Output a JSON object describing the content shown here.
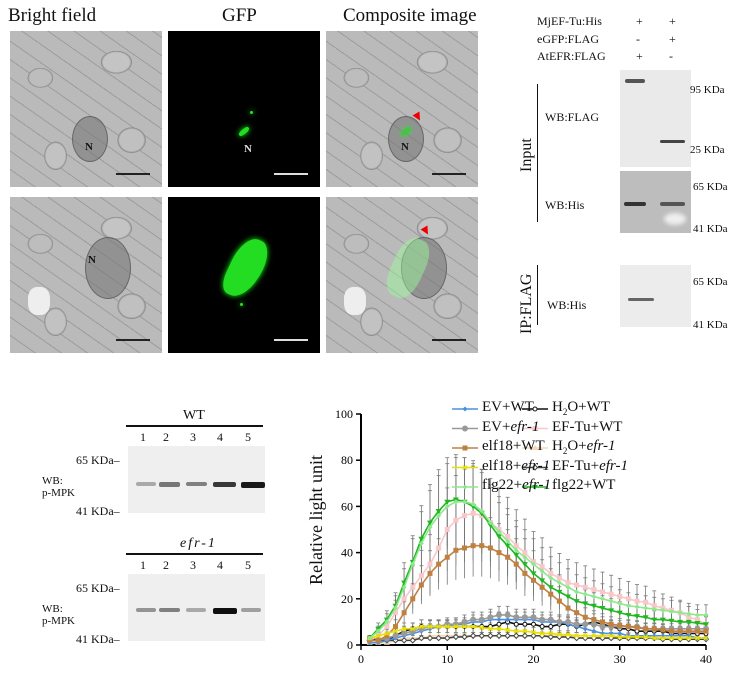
{
  "microscopy": {
    "columns": [
      "Bright field",
      "GFP",
      "Composite image"
    ],
    "nucleus_label": "N"
  },
  "coip_blot": {
    "row_labels": [
      "MjEF-Tu:His",
      "eGFP:FLAG",
      "AtEFR:FLAG"
    ],
    "lane1": [
      "+",
      "-",
      "+"
    ],
    "lane2": [
      "+",
      "+",
      "-"
    ],
    "input_label": "Input",
    "ip_label": "IP:FLAG",
    "wb_flag": "WB:FLAG",
    "wb_his": "WB:His",
    "wb_his_ip": "WB:His",
    "markers_flag": [
      "95 KDa",
      "25 KDa"
    ],
    "markers_his": [
      "65 KDa",
      "41 KDa"
    ],
    "markers_ip": [
      "65 KDa",
      "41 KDa"
    ]
  },
  "mpk_blots": [
    {
      "title": "WT",
      "lanes": [
        "1",
        "2",
        "3",
        "4",
        "5"
      ],
      "wb_line1": "WB:",
      "wb_line2": "p-MPK",
      "marker_top": "65 KDa",
      "marker_bottom": "41 KDa",
      "band_intensity": [
        0.25,
        0.5,
        0.45,
        0.8,
        0.95
      ]
    },
    {
      "title": "efr-1",
      "lanes": [
        "1",
        "2",
        "3",
        "4",
        "5"
      ],
      "wb_line1": "WB:",
      "wb_line2": "p-MPK",
      "marker_top": "65 KDa",
      "marker_bottom": "41 KDa",
      "band_intensity": [
        0.35,
        0.45,
        0.25,
        1.0,
        0.3
      ]
    }
  ],
  "chart_data": {
    "type": "line",
    "title": "",
    "xlabel": "",
    "ylabel": "Relative light unit",
    "xlim": [
      0,
      40
    ],
    "ylim": [
      0,
      100
    ],
    "xticks": [
      0,
      10,
      20,
      30,
      40
    ],
    "yticks": [
      0,
      20,
      40,
      60,
      80,
      100
    ],
    "legend_position": "top-right",
    "x": [
      1,
      2,
      3,
      4,
      5,
      6,
      7,
      8,
      9,
      10,
      11,
      12,
      13,
      14,
      15,
      16,
      17,
      18,
      19,
      20,
      21,
      22,
      23,
      24,
      25,
      26,
      27,
      28,
      29,
      30,
      31,
      32,
      33,
      34,
      35,
      36,
      37,
      38,
      39,
      40
    ],
    "series": [
      {
        "name": "H2O+WT",
        "label_main": "H",
        "label_sub": "2",
        "label_rest": "O+WT",
        "label_italic": "",
        "color": "#111111",
        "marker": "open-circle",
        "error_frac": 0.3,
        "values": [
          3,
          2,
          2,
          4,
          6,
          7,
          8,
          8,
          8,
          8,
          8,
          8,
          8,
          8,
          8,
          9,
          10,
          9,
          9,
          9,
          8,
          8,
          9,
          9,
          8,
          9,
          10,
          9,
          8,
          7,
          7,
          6,
          6,
          6,
          6,
          5,
          5,
          5,
          5,
          5
        ]
      },
      {
        "name": "EF-Tu+WT",
        "label_main": "EF-Tu+WT",
        "label_sub": "",
        "label_rest": "",
        "label_italic": "",
        "color": "#f8c8c8",
        "marker": "square",
        "error_frac": 0.35,
        "values": [
          2,
          4,
          8,
          14,
          20,
          25,
          30,
          35,
          42,
          50,
          54,
          56,
          57,
          56,
          53,
          50,
          47,
          43,
          40,
          36,
          34,
          31,
          29,
          27,
          26,
          25,
          24,
          23,
          22,
          21,
          20,
          19,
          18.5,
          17,
          16,
          15,
          14,
          12,
          11,
          9
        ]
      },
      {
        "name": "H2O+efr-1",
        "label_main": "H",
        "label_sub": "2",
        "label_rest": "O+",
        "label_italic": "efr-1",
        "color": "#f6d7b0",
        "marker": "triangle",
        "error_frac": 0.3,
        "values": [
          1,
          1,
          1,
          2,
          3,
          3,
          3,
          4,
          4,
          4,
          4,
          4,
          4,
          4,
          4,
          4,
          4,
          4,
          4,
          4,
          4,
          4,
          4,
          4,
          4,
          4,
          4,
          3,
          3,
          3,
          3,
          3,
          3,
          3,
          3,
          3,
          3,
          3,
          3,
          3
        ]
      },
      {
        "name": "EF-Tu+efr-1",
        "label_main": "EF-Tu+",
        "label_sub": "",
        "label_rest": "",
        "label_italic": "efr-1",
        "color": "#444444",
        "marker": "open-diamond",
        "error_frac": 0.3,
        "values": [
          2,
          2,
          2,
          2,
          2,
          2,
          3,
          3,
          3,
          3,
          3.5,
          3.5,
          4,
          4,
          4,
          4,
          4,
          4,
          4,
          4,
          4,
          3.5,
          3.5,
          3.5,
          3,
          3,
          3,
          3,
          3,
          3,
          3,
          3,
          3,
          3,
          2.5,
          2.5,
          2.5,
          2.5,
          2.5,
          2.5
        ]
      },
      {
        "name": "flg22+WT",
        "label_main": "flg22+WT",
        "label_sub": "",
        "label_rest": "",
        "label_italic": "",
        "color": "#1fb81f",
        "marker": "down-triangle",
        "error_frac": 0.3,
        "values": [
          3,
          7,
          11,
          17,
          27,
          36,
          46,
          53,
          58,
          62,
          63,
          62,
          60,
          57,
          52,
          47,
          43,
          39,
          35,
          31,
          28,
          25,
          23,
          21,
          19,
          18,
          17,
          16,
          15,
          14,
          13,
          12.5,
          12,
          11,
          11,
          10.5,
          10,
          10,
          9.5,
          9
        ]
      },
      {
        "name": "EV+WT",
        "label_main": "EV+WT",
        "label_sub": "",
        "label_rest": "",
        "label_italic": "",
        "color": "#4a90e2",
        "marker": "diamond",
        "error_frac": 0.25,
        "values": [
          1,
          1,
          2,
          3,
          4,
          5,
          6,
          7,
          8,
          8,
          9,
          9,
          10,
          10,
          11,
          11,
          11,
          11,
          11,
          11,
          10,
          10,
          10,
          9,
          8,
          7,
          6,
          5,
          5,
          5,
          4,
          4,
          4,
          4,
          4,
          4,
          4,
          4,
          3,
          3
        ]
      },
      {
        "name": "EV+efr-1",
        "label_main": "EV+",
        "label_sub": "",
        "label_rest": "",
        "label_italic": "efr-1",
        "color": "#999999",
        "marker": "circle",
        "error_frac": 0.25,
        "values": [
          2,
          2,
          3,
          4,
          5,
          6,
          7,
          8,
          8,
          9,
          9,
          10,
          11,
          11,
          12,
          13,
          13,
          12,
          12,
          12,
          11,
          11,
          10,
          10,
          9,
          9,
          9,
          8,
          8,
          8,
          8,
          8,
          7,
          7,
          7,
          7,
          7,
          7,
          7,
          7
        ]
      },
      {
        "name": "elf18+WT",
        "label_main": "elf18+WT",
        "label_sub": "",
        "label_rest": "",
        "label_italic": "",
        "color": "#c08040",
        "marker": "square",
        "error_frac": 0.3,
        "values": [
          2,
          2,
          4,
          8,
          14,
          20,
          26,
          31,
          35,
          38,
          41,
          42,
          43,
          43,
          42,
          40,
          38,
          35,
          31,
          28,
          25,
          22,
          19,
          16,
          14,
          12,
          11,
          10,
          9,
          8.5,
          8,
          7.5,
          7,
          7,
          6.5,
          6,
          6,
          6,
          6,
          6
        ]
      },
      {
        "name": "elf18+efr-1",
        "label_main": "elf18+",
        "label_sub": "",
        "label_rest": "",
        "label_italic": "efr-1",
        "color": "#e8e000",
        "marker": "x",
        "error_frac": 0.3,
        "values": [
          3,
          4,
          5,
          6,
          7,
          7,
          8,
          8,
          8,
          8,
          8,
          8,
          8,
          7.5,
          7,
          7,
          6.5,
          6,
          6,
          5.5,
          5,
          5,
          4.5,
          4.5,
          4,
          4,
          4,
          4,
          4,
          3.5,
          3.5,
          3.5,
          3.5,
          3,
          3,
          3,
          3,
          3,
          3,
          3
        ]
      },
      {
        "name": "flg22+efr-1",
        "label_main": "flg22+",
        "label_sub": "",
        "label_rest": "",
        "label_italic": "efr-1",
        "color": "#8ee88e",
        "marker": "diamond",
        "error_frac": 0.3,
        "values": [
          3,
          6,
          10,
          16,
          25,
          35,
          44,
          51,
          56,
          60,
          62,
          62,
          61,
          58,
          53,
          49,
          45,
          41,
          38,
          35,
          32,
          29,
          27,
          25,
          23,
          22,
          21,
          20,
          19,
          18,
          17,
          16.5,
          16,
          15.5,
          15,
          14.5,
          14,
          13.5,
          13,
          13
        ]
      }
    ]
  }
}
